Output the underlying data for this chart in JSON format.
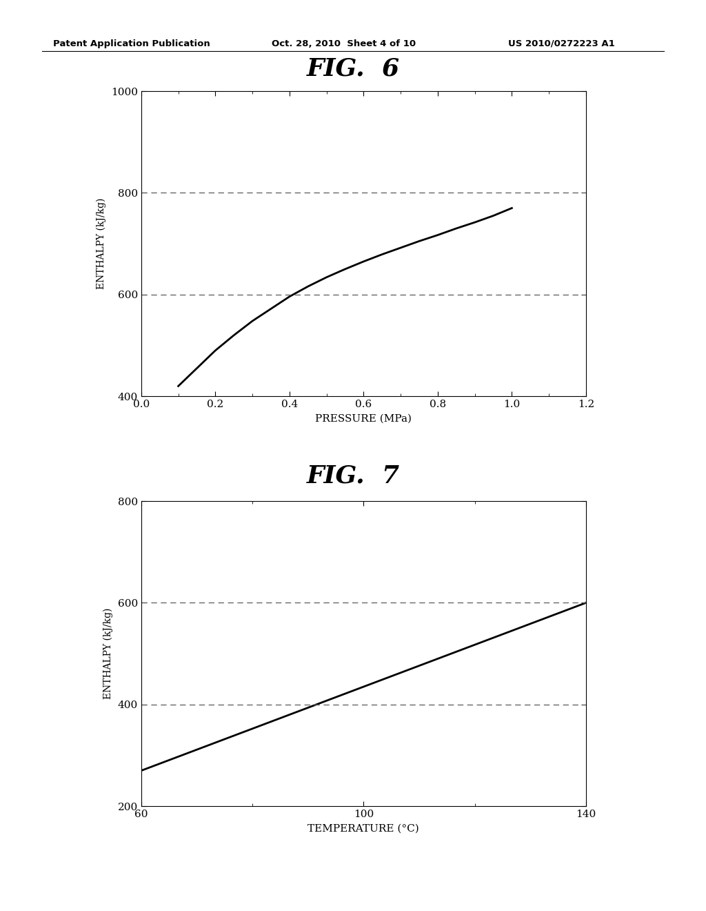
{
  "fig6_title": "FIG.  6",
  "fig7_title": "FIG.  7",
  "header_left": "Patent Application Publication",
  "header_mid": "Oct. 28, 2010  Sheet 4 of 10",
  "header_right": "US 2010/0272223 A1",
  "fig6": {
    "xlabel": "PRESSURE (MPa)",
    "ylabel": "ENTHALPY (kJ/kg)",
    "xlim": [
      0.0,
      1.2
    ],
    "ylim": [
      400,
      1000
    ],
    "xticks": [
      0.0,
      0.2,
      0.4,
      0.6,
      0.8,
      1.0,
      1.2
    ],
    "yticks": [
      400,
      600,
      800,
      1000
    ],
    "hlines": [
      600,
      800
    ],
    "curve_x": [
      0.1,
      0.15,
      0.2,
      0.25,
      0.3,
      0.35,
      0.4,
      0.45,
      0.5,
      0.55,
      0.6,
      0.65,
      0.7,
      0.75,
      0.8,
      0.85,
      0.9,
      0.95,
      1.0
    ],
    "curve_y": [
      420,
      455,
      490,
      520,
      548,
      572,
      596,
      616,
      634,
      650,
      665,
      679,
      692,
      705,
      717,
      730,
      742,
      755,
      770
    ]
  },
  "fig7": {
    "xlabel": "TEMPERATURE (°C)",
    "ylabel": "ENTHALPY (kJ/kg)",
    "xlim": [
      60,
      140
    ],
    "ylim": [
      200,
      800
    ],
    "xticks": [
      60,
      100,
      140
    ],
    "yticks": [
      200,
      400,
      600,
      800
    ],
    "hlines": [
      400,
      600
    ],
    "curve_x": [
      60,
      140
    ],
    "curve_y": [
      270,
      600
    ]
  },
  "bg_color": "#ffffff",
  "line_color": "#000000",
  "dashed_color": "#666666"
}
